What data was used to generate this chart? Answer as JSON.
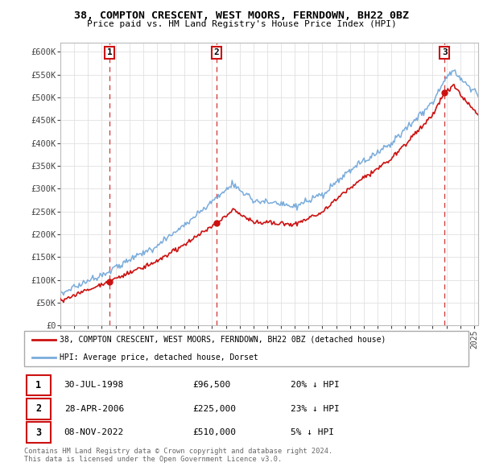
{
  "title": "38, COMPTON CRESCENT, WEST MOORS, FERNDOWN, BH22 0BZ",
  "subtitle": "Price paid vs. HM Land Registry's House Price Index (HPI)",
  "ylim": [
    0,
    620000
  ],
  "yticks": [
    0,
    50000,
    100000,
    150000,
    200000,
    250000,
    300000,
    350000,
    400000,
    450000,
    500000,
    550000,
    600000
  ],
  "ytick_labels": [
    "£0",
    "£50K",
    "£100K",
    "£150K",
    "£200K",
    "£250K",
    "£300K",
    "£350K",
    "£400K",
    "£450K",
    "£500K",
    "£550K",
    "£600K"
  ],
  "hpi_color": "#7aacdc",
  "price_color": "#cc1111",
  "dashed_color": "#cc1111",
  "sale1": {
    "date": 1998.58,
    "price": 96500,
    "label": "1"
  },
  "sale2": {
    "date": 2006.33,
    "price": 225000,
    "label": "2"
  },
  "sale3": {
    "date": 2022.86,
    "price": 510000,
    "label": "3"
  },
  "legend_entries": [
    "38, COMPTON CRESCENT, WEST MOORS, FERNDOWN, BH22 0BZ (detached house)",
    "HPI: Average price, detached house, Dorset"
  ],
  "table_rows": [
    [
      "1",
      "30-JUL-1998",
      "£96,500",
      "20% ↓ HPI"
    ],
    [
      "2",
      "28-APR-2006",
      "£225,000",
      "23% ↓ HPI"
    ],
    [
      "3",
      "08-NOV-2022",
      "£510,000",
      "5% ↓ HPI"
    ]
  ],
  "footnote1": "Contains HM Land Registry data © Crown copyright and database right 2024.",
  "footnote2": "This data is licensed under the Open Government Licence v3.0.",
  "background_color": "#ffffff",
  "grid_color": "#e0e0e0",
  "xlim_start": 1995,
  "xlim_end": 2025.3
}
